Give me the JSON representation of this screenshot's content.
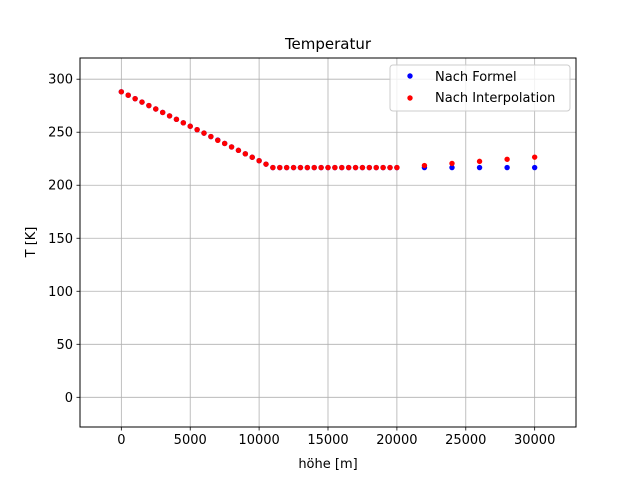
{
  "chart_data": {
    "type": "scatter",
    "title": "Temperatur",
    "xlabel": "höhe [m]",
    "ylabel": "T [K]",
    "xlim": [
      -3000,
      33000
    ],
    "ylim": [
      -28,
      320
    ],
    "xticks": [
      0,
      5000,
      10000,
      15000,
      20000,
      25000,
      30000
    ],
    "yticks": [
      0,
      50,
      100,
      150,
      200,
      250,
      300
    ],
    "grid": true,
    "legend_position": "top-right",
    "series": [
      {
        "name": "Nach Formel",
        "color": "#0000ff",
        "points": [
          [
            0,
            288.15
          ],
          [
            500,
            284.9
          ],
          [
            1000,
            281.65
          ],
          [
            1500,
            278.4
          ],
          [
            2000,
            275.15
          ],
          [
            2500,
            271.9
          ],
          [
            3000,
            268.65
          ],
          [
            3500,
            265.4
          ],
          [
            4000,
            262.15
          ],
          [
            4500,
            258.9
          ],
          [
            5000,
            255.65
          ],
          [
            5500,
            252.4
          ],
          [
            6000,
            249.15
          ],
          [
            6500,
            245.9
          ],
          [
            7000,
            242.65
          ],
          [
            7500,
            239.4
          ],
          [
            8000,
            236.15
          ],
          [
            8500,
            232.9
          ],
          [
            9000,
            229.65
          ],
          [
            9500,
            226.4
          ],
          [
            10000,
            223.15
          ],
          [
            10500,
            219.9
          ],
          [
            11000,
            216.65
          ],
          [
            11500,
            216.65
          ],
          [
            12000,
            216.65
          ],
          [
            12500,
            216.65
          ],
          [
            13000,
            216.65
          ],
          [
            13500,
            216.65
          ],
          [
            14000,
            216.65
          ],
          [
            14500,
            216.65
          ],
          [
            15000,
            216.65
          ],
          [
            15500,
            216.65
          ],
          [
            16000,
            216.65
          ],
          [
            16500,
            216.65
          ],
          [
            17000,
            216.65
          ],
          [
            17500,
            216.65
          ],
          [
            18000,
            216.65
          ],
          [
            18500,
            216.65
          ],
          [
            19000,
            216.65
          ],
          [
            19500,
            216.65
          ],
          [
            20000,
            216.65
          ],
          [
            22000,
            216.65
          ],
          [
            24000,
            216.65
          ],
          [
            26000,
            216.65
          ],
          [
            28000,
            216.65
          ],
          [
            30000,
            216.65
          ]
        ]
      },
      {
        "name": "Nach Interpolation",
        "color": "#ff0000",
        "points": [
          [
            0,
            288.15
          ],
          [
            500,
            284.9
          ],
          [
            1000,
            281.65
          ],
          [
            1500,
            278.4
          ],
          [
            2000,
            275.15
          ],
          [
            2500,
            271.9
          ],
          [
            3000,
            268.65
          ],
          [
            3500,
            265.4
          ],
          [
            4000,
            262.15
          ],
          [
            4500,
            258.9
          ],
          [
            5000,
            255.65
          ],
          [
            5500,
            252.4
          ],
          [
            6000,
            249.15
          ],
          [
            6500,
            245.9
          ],
          [
            7000,
            242.4
          ],
          [
            7500,
            239.4
          ],
          [
            8000,
            236.15
          ],
          [
            8500,
            232.9
          ],
          [
            9000,
            229.65
          ],
          [
            9500,
            226.4
          ],
          [
            10000,
            223.15
          ],
          [
            10500,
            219.9
          ],
          [
            11000,
            216.65
          ],
          [
            11500,
            216.65
          ],
          [
            12000,
            216.65
          ],
          [
            12500,
            216.65
          ],
          [
            13000,
            216.65
          ],
          [
            13500,
            216.65
          ],
          [
            14000,
            216.65
          ],
          [
            14500,
            216.65
          ],
          [
            15000,
            216.65
          ],
          [
            15500,
            216.65
          ],
          [
            16000,
            216.65
          ],
          [
            16500,
            216.65
          ],
          [
            17000,
            216.65
          ],
          [
            17500,
            216.65
          ],
          [
            18000,
            216.65
          ],
          [
            18500,
            216.65
          ],
          [
            19000,
            216.65
          ],
          [
            19500,
            216.65
          ],
          [
            20000,
            216.65
          ],
          [
            22000,
            218.6
          ],
          [
            24000,
            220.6
          ],
          [
            26000,
            222.5
          ],
          [
            28000,
            224.5
          ],
          [
            30000,
            226.5
          ]
        ]
      }
    ]
  }
}
